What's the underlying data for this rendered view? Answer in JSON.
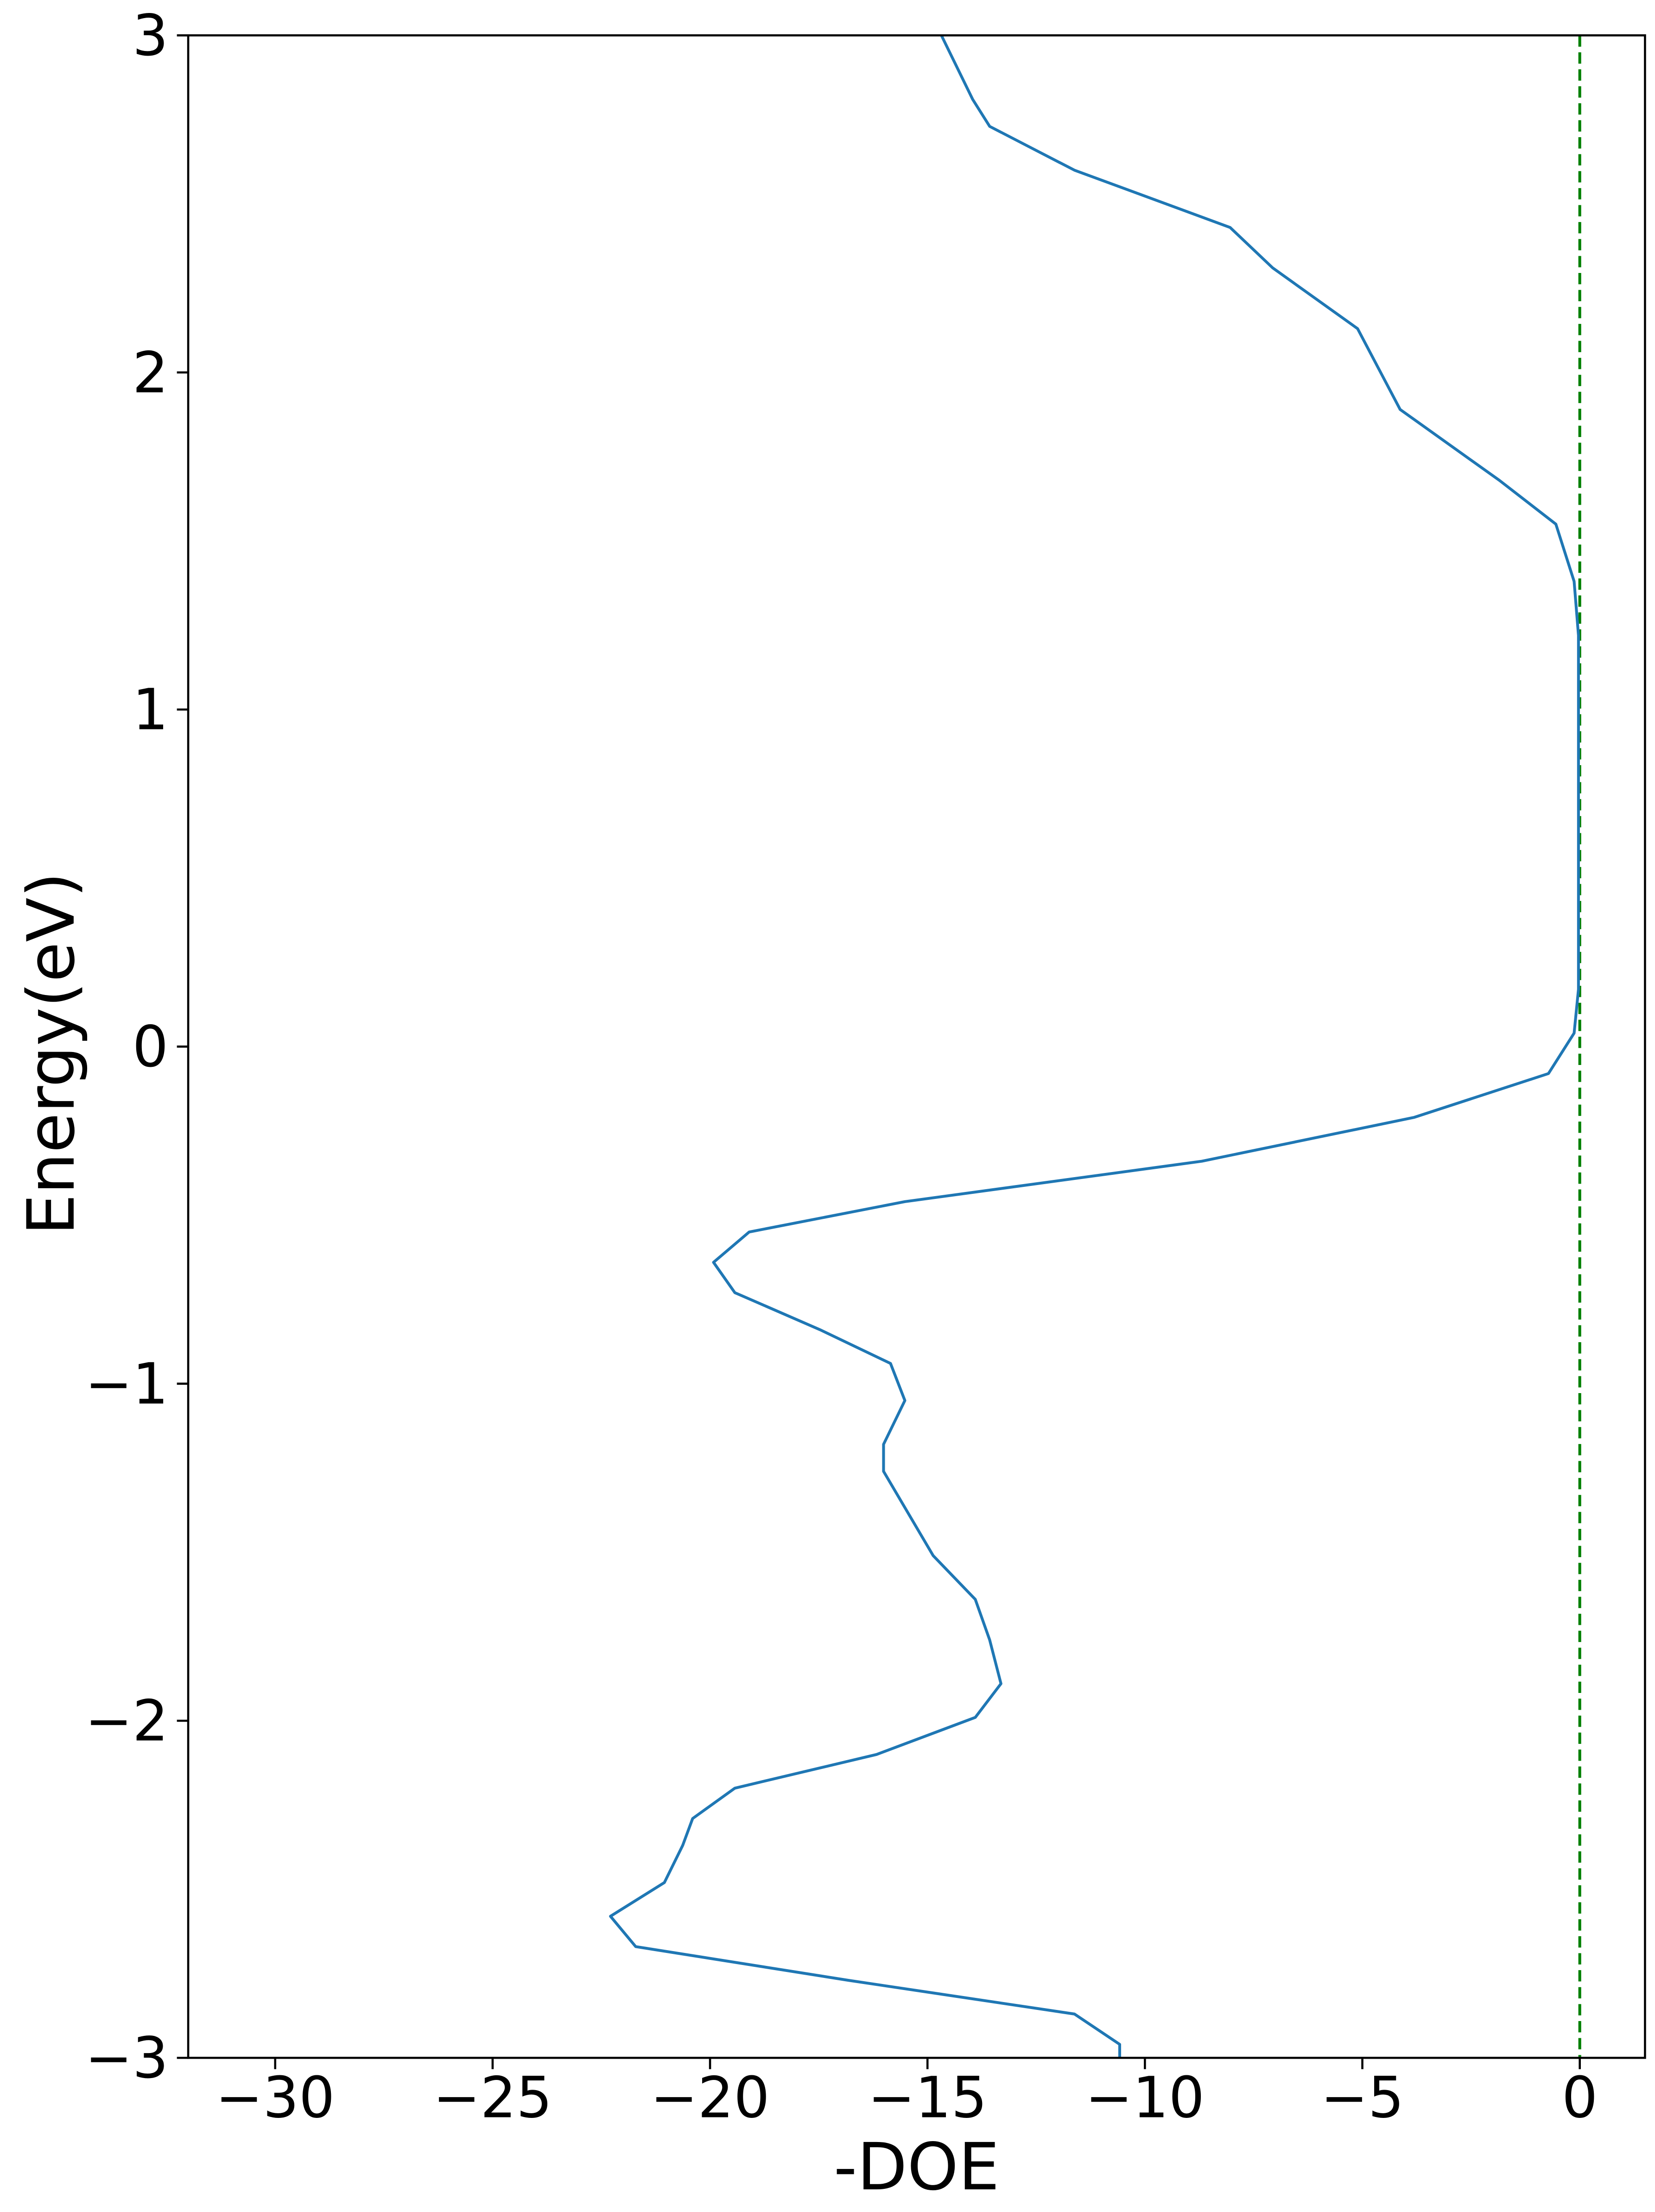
{
  "chart_data": {
    "type": "line",
    "xlabel": "-DOE",
    "ylabel": "Energy(eV)",
    "xlim": [
      -32,
      1.5
    ],
    "ylim": [
      -3,
      3
    ],
    "xticks": [
      {
        "value": -30,
        "label": "−30"
      },
      {
        "value": -25,
        "label": "−25"
      },
      {
        "value": -20,
        "label": "−20"
      },
      {
        "value": -15,
        "label": "−15"
      },
      {
        "value": -10,
        "label": "−10"
      },
      {
        "value": -5,
        "label": "−5"
      },
      0
    ],
    "yticks": [
      {
        "value": -3,
        "label": "−3"
      },
      {
        "value": -2,
        "label": "−2"
      },
      {
        "value": -1,
        "label": "−1"
      },
      0,
      1,
      2,
      3
    ],
    "reference_line": {
      "x": 0,
      "color": "#007f00",
      "dashed": true
    },
    "series": [
      {
        "color": "#1f77b4",
        "x": [
          -14.68,
          -13.96,
          -13.57,
          -11.62,
          -8.04,
          -7.06,
          -5.11,
          -4.62,
          -4.13,
          -1.85,
          -0.55,
          -0.13,
          -0.03,
          -0.03,
          -0.13,
          -0.72,
          -3.81,
          -8.69,
          -15.52,
          -19.1,
          -19.92,
          -19.43,
          -17.47,
          -15.85,
          -15.52,
          -16.01,
          -16.01,
          -14.87,
          -13.9,
          -13.57,
          -13.31,
          -13.9,
          -16.17,
          -19.43,
          -20.4,
          -20.63,
          -21.05,
          -22.29,
          -21.71,
          -16.82,
          -11.62,
          -10.58,
          -10.58
        ],
        "values": [
          3.0,
          2.81,
          2.73,
          2.6,
          2.43,
          2.31,
          2.13,
          2.01,
          1.89,
          1.68,
          1.55,
          1.38,
          1.22,
          0.17,
          0.04,
          -0.08,
          -0.21,
          -0.34,
          -0.46,
          -0.55,
          -0.64,
          -0.73,
          -0.84,
          -0.94,
          -1.05,
          -1.18,
          -1.26,
          -1.51,
          -1.64,
          -1.76,
          -1.89,
          -1.99,
          -2.1,
          -2.2,
          -2.29,
          -2.37,
          -2.48,
          -2.58,
          -2.67,
          -2.77,
          -2.87,
          -2.96,
          -3.0
        ]
      }
    ]
  }
}
